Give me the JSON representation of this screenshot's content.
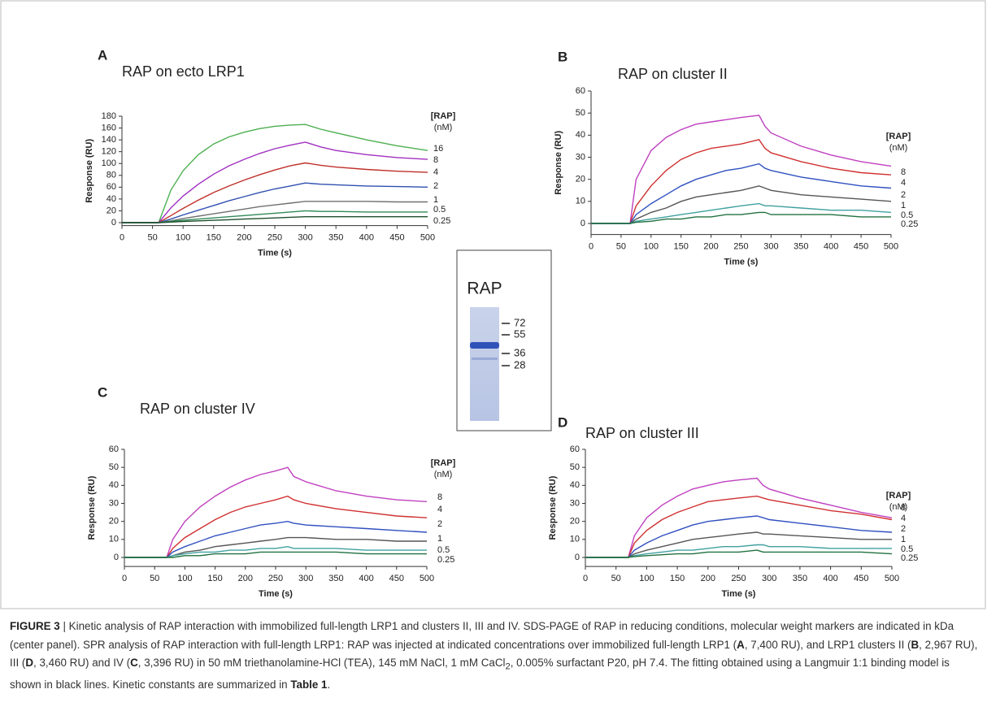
{
  "chart_data": [
    {
      "type": "line",
      "panel": "A",
      "title": "RAP on ecto LRP1",
      "xlabel": "Time (s)",
      "ylabel": "Response (RU)",
      "legend_title": "[RAP]",
      "legend_unit": "(nM)",
      "xlim": [
        0,
        500
      ],
      "ylim": [
        -5,
        180
      ],
      "xticks": [
        0,
        50,
        100,
        150,
        200,
        250,
        300,
        350,
        400,
        450,
        500
      ],
      "yticks": [
        0,
        20,
        40,
        60,
        80,
        100,
        120,
        140,
        160,
        180
      ],
      "x": [
        0,
        50,
        60,
        80,
        100,
        125,
        150,
        175,
        200,
        225,
        250,
        275,
        300,
        325,
        350,
        400,
        450,
        500
      ],
      "series": [
        {
          "name": "16",
          "color": "#4caf50",
          "values": [
            0,
            0,
            0,
            55,
            88,
            115,
            133,
            145,
            153,
            159,
            163,
            165,
            166,
            158,
            152,
            140,
            130,
            122
          ]
        },
        {
          "name": "8",
          "color": "#a030c0",
          "values": [
            0,
            0,
            0,
            25,
            45,
            65,
            82,
            96,
            107,
            117,
            125,
            131,
            136,
            128,
            122,
            115,
            110,
            107
          ]
        },
        {
          "name": "4",
          "color": "#c0302a",
          "values": [
            0,
            0,
            0,
            12,
            24,
            38,
            51,
            62,
            72,
            81,
            89,
            96,
            101,
            97,
            94,
            90,
            87,
            85
          ]
        },
        {
          "name": "2",
          "color": "#3050b0",
          "values": [
            0,
            0,
            0,
            6,
            13,
            21,
            29,
            37,
            44,
            51,
            57,
            62,
            67,
            65,
            64,
            62,
            61,
            60
          ]
        },
        {
          "name": "1",
          "color": "#707070",
          "values": [
            0,
            0,
            0,
            3,
            7,
            11,
            15,
            19,
            23,
            27,
            30,
            33,
            36,
            36,
            36,
            36,
            35,
            35
          ]
        },
        {
          "name": "0.5",
          "color": "#2e8b57",
          "values": [
            0,
            0,
            0,
            2,
            4,
            6,
            8,
            10,
            12,
            14,
            16,
            18,
            20,
            19,
            19,
            18,
            18,
            18
          ]
        },
        {
          "name": "0.25",
          "color": "#1f4f2f",
          "values": [
            0,
            0,
            0,
            1,
            2,
            3,
            4,
            5,
            6,
            7,
            8,
            9,
            10,
            10,
            10,
            10,
            10,
            10
          ]
        }
      ]
    },
    {
      "type": "line",
      "panel": "B",
      "title": "RAP on cluster II",
      "xlabel": "Time (s)",
      "ylabel": "Response (RU)",
      "legend_title": "[RAP]",
      "legend_unit": "(nM)",
      "xlim": [
        0,
        500
      ],
      "ylim": [
        -5,
        60
      ],
      "xticks": [
        0,
        50,
        100,
        150,
        200,
        250,
        300,
        350,
        400,
        450,
        500
      ],
      "yticks": [
        0,
        10,
        20,
        30,
        40,
        50,
        60
      ],
      "x": [
        0,
        50,
        65,
        75,
        100,
        125,
        150,
        175,
        200,
        225,
        250,
        280,
        290,
        300,
        350,
        400,
        450,
        500
      ],
      "series": [
        {
          "name": "8",
          "color": "#c040c0",
          "values": [
            0,
            0,
            0,
            20,
            33,
            39,
            42.5,
            45,
            46,
            47,
            48,
            49,
            44,
            41,
            35,
            31,
            28,
            26
          ]
        },
        {
          "name": "4",
          "color": "#d03030",
          "values": [
            0,
            0,
            0,
            8,
            17,
            24,
            29,
            32,
            34,
            35,
            36,
            38,
            34,
            32,
            28,
            25,
            23,
            22
          ]
        },
        {
          "name": "2",
          "color": "#3050c0",
          "values": [
            0,
            0,
            0,
            4,
            9,
            13,
            17,
            20,
            22,
            24,
            25,
            27,
            25,
            24,
            21,
            19,
            17,
            16
          ]
        },
        {
          "name": "1",
          "color": "#555555",
          "values": [
            0,
            0,
            0,
            2,
            5,
            7,
            10,
            12,
            13,
            14,
            15,
            17,
            16,
            15,
            13,
            12,
            11,
            10
          ]
        },
        {
          "name": "0.5",
          "color": "#40a0a0",
          "values": [
            0,
            0,
            0,
            1,
            2,
            3,
            4,
            5,
            6,
            7,
            8,
            9,
            8,
            8,
            7,
            6,
            6,
            5
          ]
        },
        {
          "name": "0.25",
          "color": "#207040",
          "values": [
            0,
            0,
            0,
            0.5,
            1,
            2,
            2,
            3,
            3,
            4,
            4,
            5,
            5,
            4,
            4,
            4,
            3,
            3
          ]
        }
      ]
    },
    {
      "type": "line",
      "panel": "C",
      "title": "RAP on cluster IV",
      "xlabel": "Time (s)",
      "ylabel": "Response (RU)",
      "legend_title": "[RAP]",
      "legend_unit": "(nM)",
      "xlim": [
        0,
        500
      ],
      "ylim": [
        -5,
        60
      ],
      "xticks": [
        0,
        50,
        100,
        150,
        200,
        250,
        300,
        350,
        400,
        450,
        500
      ],
      "yticks": [
        0,
        10,
        20,
        30,
        40,
        50,
        60
      ],
      "x": [
        0,
        50,
        70,
        80,
        100,
        125,
        150,
        175,
        200,
        225,
        250,
        270,
        280,
        300,
        350,
        400,
        450,
        500
      ],
      "series": [
        {
          "name": "8",
          "color": "#c040c0",
          "values": [
            0,
            0,
            0,
            10,
            20,
            28,
            34,
            39,
            43,
            46,
            48,
            50,
            45,
            42,
            37,
            34,
            32,
            31
          ]
        },
        {
          "name": "4",
          "color": "#d03030",
          "values": [
            0,
            0,
            0,
            5,
            11,
            16,
            21,
            25,
            28,
            30,
            32,
            34,
            32,
            30,
            27,
            25,
            23,
            22
          ]
        },
        {
          "name": "2",
          "color": "#3050c0",
          "values": [
            0,
            0,
            0,
            3,
            6,
            9,
            12,
            14,
            16,
            18,
            19,
            20,
            19,
            18,
            17,
            16,
            15,
            14
          ]
        },
        {
          "name": "1",
          "color": "#555555",
          "values": [
            0,
            0,
            0,
            1,
            3,
            4,
            6,
            7,
            8,
            9,
            10,
            11,
            11,
            11,
            10,
            10,
            9,
            9
          ]
        },
        {
          "name": "0.5",
          "color": "#40a0a0",
          "values": [
            0,
            0,
            0,
            1,
            2,
            3,
            3,
            4,
            4,
            5,
            5,
            6,
            5,
            5,
            5,
            4,
            4,
            4
          ]
        },
        {
          "name": "0.25",
          "color": "#207040",
          "values": [
            0,
            0,
            0,
            0,
            1,
            1,
            2,
            2,
            2,
            3,
            3,
            3,
            3,
            3,
            3,
            2,
            2,
            2
          ]
        }
      ]
    },
    {
      "type": "line",
      "panel": "D",
      "title": "RAP on cluster III",
      "xlabel": "Time (s)",
      "ylabel": "Response (RU)",
      "legend_title": "[RAP]",
      "legend_unit": "(nM)",
      "xlim": [
        0,
        500
      ],
      "ylim": [
        -5,
        60
      ],
      "xticks": [
        0,
        50,
        100,
        150,
        200,
        250,
        300,
        350,
        400,
        450,
        500
      ],
      "yticks": [
        0,
        10,
        20,
        30,
        40,
        50,
        60
      ],
      "x": [
        0,
        50,
        70,
        80,
        100,
        125,
        150,
        175,
        200,
        225,
        250,
        280,
        290,
        300,
        350,
        400,
        450,
        500
      ],
      "series": [
        {
          "name": "8",
          "color": "#c040c0",
          "values": [
            0,
            0,
            0,
            12,
            22,
            29,
            34,
            38,
            40,
            42,
            43,
            44,
            40,
            38,
            33,
            29,
            25,
            22
          ]
        },
        {
          "name": "4",
          "color": "#d03030",
          "values": [
            0,
            0,
            0,
            8,
            15,
            21,
            25,
            28,
            31,
            32,
            33,
            34,
            33,
            32,
            29,
            26,
            24,
            21
          ]
        },
        {
          "name": "2",
          "color": "#3050c0",
          "values": [
            0,
            0,
            0,
            4,
            8,
            12,
            15,
            18,
            20,
            21,
            22,
            23,
            22,
            21,
            19,
            17,
            15,
            14
          ]
        },
        {
          "name": "1",
          "color": "#555555",
          "values": [
            0,
            0,
            0,
            2,
            4,
            6,
            8,
            10,
            11,
            12,
            13,
            14,
            13,
            13,
            12,
            11,
            10,
            10
          ]
        },
        {
          "name": "0.5",
          "color": "#40a0a0",
          "values": [
            0,
            0,
            0,
            1,
            2,
            3,
            4,
            4,
            5,
            6,
            6,
            7,
            7,
            6,
            6,
            5,
            5,
            5
          ]
        },
        {
          "name": "0.25",
          "color": "#207040",
          "values": [
            0,
            0,
            0,
            0.5,
            1,
            1.5,
            2,
            2,
            3,
            3,
            3,
            4,
            3,
            3,
            3,
            3,
            3,
            2
          ]
        }
      ]
    }
  ],
  "gel": {
    "title": "RAP",
    "markers": [
      72,
      55,
      36,
      28
    ]
  },
  "caption": [
    {
      "text": "FIGURE 3",
      "style": "bold"
    },
    {
      "text": " | Kinetic analysis of RAP interaction with immobilized full-length LRP1 and clusters II, III and IV. SDS-PAGE of RAP in reducing conditions, molecular weight markers are indicated in kDa (center panel). SPR analysis of RAP interaction with full-length LRP1: RAP was injected at indicated concentrations over immobilized full-length LRP1 ("
    },
    {
      "text": "A",
      "style": "bold"
    },
    {
      "text": ", 7,400 RU), and LRP1 clusters II ("
    },
    {
      "text": "B",
      "style": "bold"
    },
    {
      "text": ", 2,967 RU), III ("
    },
    {
      "text": "D",
      "style": "bold"
    },
    {
      "text": ", 3,460 RU) and IV ("
    },
    {
      "text": "C",
      "style": "bold"
    },
    {
      "text": ", 3,396 RU) in 50 mM triethanolamine-HCl (TEA), 145 mM NaCl, 1 mM CaCl"
    },
    {
      "text": "2",
      "style": "sub"
    },
    {
      "text": ", 0.005% surfactant P20, pH 7.4. The fitting obtained using a Langmuir 1:1 binding model is shown in black lines. Kinetic constants are summarized in "
    },
    {
      "text": "Table 1",
      "style": "bold"
    },
    {
      "text": "."
    }
  ]
}
